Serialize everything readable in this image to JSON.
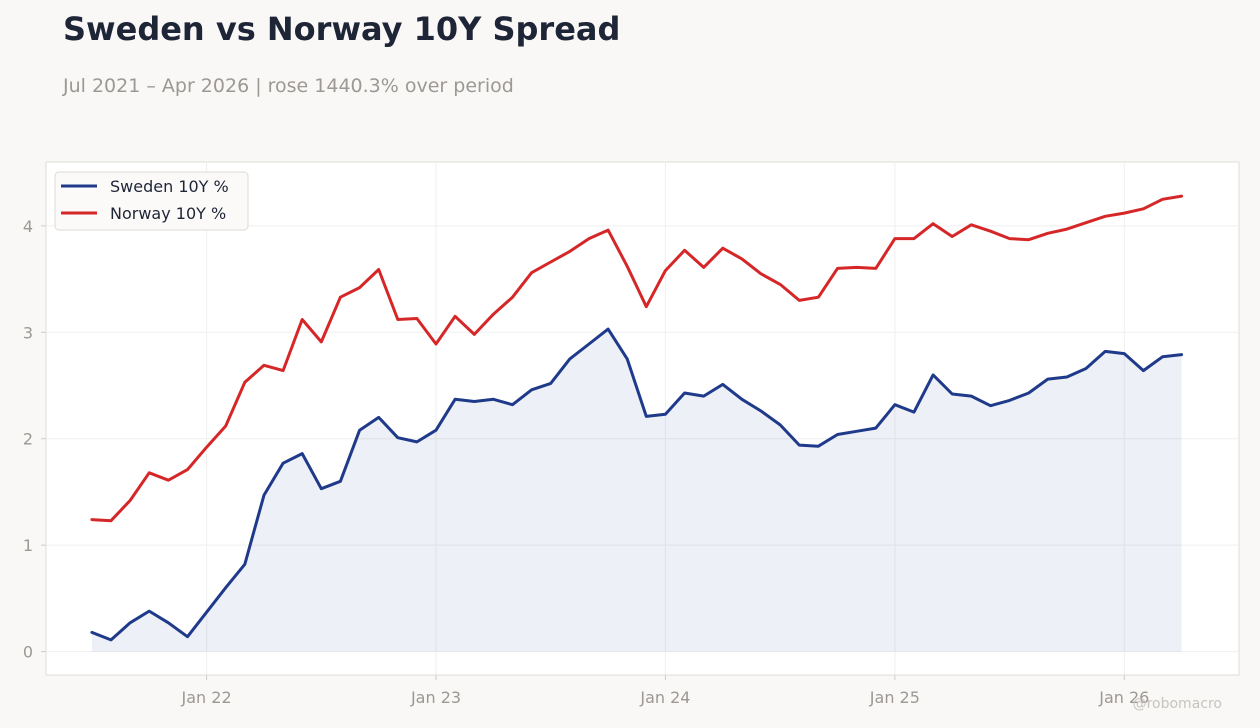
{
  "header": {
    "title": "Sweden vs Norway 10Y Spread",
    "subtitle": "Jul 2021 – Apr 2026 | rose 1440.3% over period"
  },
  "watermark": "@robomacro",
  "colors": {
    "sweden": "#1f3a8a",
    "norway": "#d62728",
    "fill": "#e8eaf2",
    "grid": "#efefef",
    "frame": "#e0ddd6",
    "background": "#f9f8f6"
  },
  "chart_data": {
    "type": "line",
    "x_labels": [
      "Jan 22",
      "Jan 23",
      "Jan 24",
      "Jan 25",
      "Jan 26"
    ],
    "x_ticks": [
      2022.0,
      2023.0,
      2024.0,
      2025.0,
      2026.0
    ],
    "xlim": [
      2021.3,
      2026.5
    ],
    "y_ticks": [
      0,
      1,
      2,
      3,
      4
    ],
    "ylim": [
      -0.22,
      4.6
    ],
    "grid": true,
    "legend_position": "top-left",
    "shaded_series": "Sweden 10Y %",
    "x": [
      2021.5,
      2021.5833,
      2021.6667,
      2021.75,
      2021.8333,
      2021.9167,
      2022.0,
      2022.0833,
      2022.1667,
      2022.25,
      2022.3333,
      2022.4167,
      2022.5,
      2022.5833,
      2022.6667,
      2022.75,
      2022.8333,
      2022.9167,
      2023.0,
      2023.0833,
      2023.1667,
      2023.25,
      2023.3333,
      2023.4167,
      2023.5,
      2023.5833,
      2023.6667,
      2023.75,
      2023.8333,
      2023.9167,
      2024.0,
      2024.0833,
      2024.1667,
      2024.25,
      2024.3333,
      2024.4167,
      2024.5,
      2024.5833,
      2024.6667,
      2024.75,
      2024.8333,
      2024.9167,
      2025.0,
      2025.0833,
      2025.1667,
      2025.25,
      2025.3333,
      2025.4167,
      2025.5,
      2025.5833,
      2025.6667,
      2025.75,
      2025.8333,
      2025.9167,
      2026.0,
      2026.0833,
      2026.1667,
      2026.25
    ],
    "series": [
      {
        "name": "Sweden 10Y %",
        "values": [
          0.18,
          0.11,
          0.27,
          0.38,
          0.27,
          0.14,
          0.37,
          0.6,
          0.82,
          1.47,
          1.77,
          1.86,
          1.53,
          1.6,
          2.08,
          2.2,
          2.01,
          1.97,
          2.08,
          2.37,
          2.35,
          2.37,
          2.32,
          2.46,
          2.52,
          2.75,
          2.89,
          3.03,
          2.75,
          2.21,
          2.23,
          2.43,
          2.4,
          2.51,
          2.37,
          2.26,
          2.13,
          1.94,
          1.93,
          2.04,
          2.07,
          2.1,
          2.32,
          2.25,
          2.6,
          2.42,
          2.4,
          2.31,
          2.36,
          2.43,
          2.56,
          2.58,
          2.66,
          2.82,
          2.8,
          2.64,
          2.77,
          2.79
        ]
      },
      {
        "name": "Norway 10Y %",
        "values": [
          1.24,
          1.23,
          1.42,
          1.68,
          1.61,
          1.71,
          1.92,
          2.12,
          2.53,
          2.69,
          2.64,
          3.12,
          2.91,
          3.33,
          3.42,
          3.59,
          3.12,
          3.13,
          2.89,
          3.15,
          2.98,
          3.17,
          3.33,
          3.56,
          3.66,
          3.76,
          3.88,
          3.96,
          3.62,
          3.24,
          3.58,
          3.77,
          3.61,
          3.79,
          3.69,
          3.55,
          3.45,
          3.3,
          3.33,
          3.6,
          3.61,
          3.6,
          3.88,
          3.88,
          4.02,
          3.9,
          4.01,
          3.95,
          3.88,
          3.87,
          3.93,
          3.97,
          4.03,
          4.09,
          4.12,
          4.16,
          4.25,
          4.28
        ]
      }
    ]
  }
}
